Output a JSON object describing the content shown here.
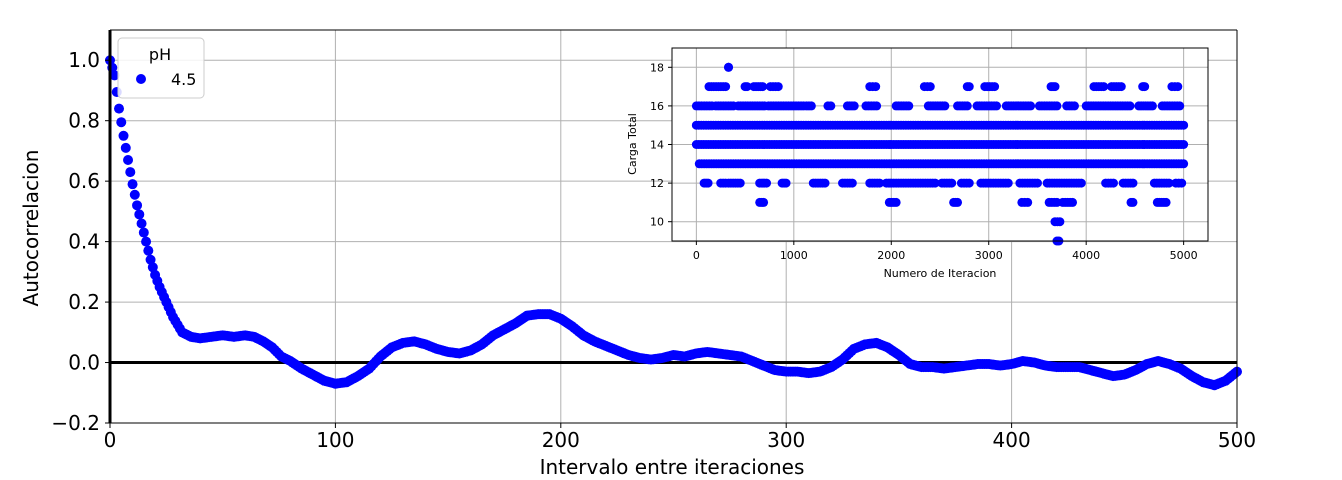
{
  "chart_data": [
    {
      "type": "scatter",
      "xlabel": "Intervalo entre iteraciones",
      "ylabel": "Autocorrelacion",
      "xlim": [
        0,
        500
      ],
      "ylim": [
        -0.2,
        1.1
      ],
      "xticks": [
        0,
        100,
        200,
        300,
        400,
        500
      ],
      "xtick_labels": [
        "0",
        "100",
        "200",
        "300",
        "400",
        "500"
      ],
      "yticks": [
        -0.2,
        0.0,
        0.2,
        0.4,
        0.6,
        0.8,
        1.0
      ],
      "ytick_labels": [
        "−0.2",
        "0.0",
        "0.2",
        "0.4",
        "0.6",
        "0.8",
        "1.0"
      ],
      "grid": true,
      "reference_line": {
        "y": 0.0,
        "color": "#000000"
      },
      "legend": {
        "title": "pH",
        "position": "top-left"
      },
      "series": [
        {
          "name": "4.5",
          "color": "#0000ff",
          "x_step": 1,
          "x_start": 0,
          "keypoints": [
            [
              0,
              1.0
            ],
            [
              2,
              0.95
            ],
            [
              4,
              0.84
            ],
            [
              6,
              0.75
            ],
            [
              8,
              0.67
            ],
            [
              10,
              0.59
            ],
            [
              12,
              0.52
            ],
            [
              14,
              0.46
            ],
            [
              16,
              0.4
            ],
            [
              18,
              0.34
            ],
            [
              20,
              0.29
            ],
            [
              22,
              0.25
            ],
            [
              25,
              0.2
            ],
            [
              28,
              0.15
            ],
            [
              32,
              0.1
            ],
            [
              36,
              0.085
            ],
            [
              40,
              0.08
            ],
            [
              45,
              0.085
            ],
            [
              50,
              0.09
            ],
            [
              55,
              0.085
            ],
            [
              60,
              0.09
            ],
            [
              64,
              0.085
            ],
            [
              68,
              0.07
            ],
            [
              72,
              0.05
            ],
            [
              76,
              0.02
            ],
            [
              80,
              0.005
            ],
            [
              85,
              -0.02
            ],
            [
              90,
              -0.04
            ],
            [
              95,
              -0.06
            ],
            [
              100,
              -0.07
            ],
            [
              105,
              -0.065
            ],
            [
              110,
              -0.045
            ],
            [
              115,
              -0.02
            ],
            [
              120,
              0.02
            ],
            [
              125,
              0.05
            ],
            [
              130,
              0.065
            ],
            [
              135,
              0.07
            ],
            [
              140,
              0.06
            ],
            [
              145,
              0.045
            ],
            [
              150,
              0.035
            ],
            [
              155,
              0.03
            ],
            [
              160,
              0.04
            ],
            [
              165,
              0.06
            ],
            [
              170,
              0.09
            ],
            [
              175,
              0.11
            ],
            [
              180,
              0.13
            ],
            [
              185,
              0.155
            ],
            [
              190,
              0.16
            ],
            [
              195,
              0.16
            ],
            [
              200,
              0.145
            ],
            [
              205,
              0.12
            ],
            [
              210,
              0.09
            ],
            [
              215,
              0.07
            ],
            [
              220,
              0.055
            ],
            [
              225,
              0.04
            ],
            [
              230,
              0.025
            ],
            [
              235,
              0.015
            ],
            [
              240,
              0.01
            ],
            [
              245,
              0.015
            ],
            [
              250,
              0.025
            ],
            [
              255,
              0.02
            ],
            [
              260,
              0.03
            ],
            [
              265,
              0.035
            ],
            [
              270,
              0.03
            ],
            [
              275,
              0.025
            ],
            [
              280,
              0.02
            ],
            [
              285,
              0.005
            ],
            [
              290,
              -0.01
            ],
            [
              295,
              -0.025
            ],
            [
              300,
              -0.03
            ],
            [
              305,
              -0.03
            ],
            [
              310,
              -0.035
            ],
            [
              315,
              -0.03
            ],
            [
              320,
              -0.015
            ],
            [
              325,
              0.01
            ],
            [
              330,
              0.045
            ],
            [
              335,
              0.06
            ],
            [
              340,
              0.065
            ],
            [
              345,
              0.05
            ],
            [
              350,
              0.025
            ],
            [
              355,
              -0.005
            ],
            [
              360,
              -0.015
            ],
            [
              365,
              -0.015
            ],
            [
              370,
              -0.02
            ],
            [
              375,
              -0.015
            ],
            [
              380,
              -0.01
            ],
            [
              385,
              -0.005
            ],
            [
              390,
              -0.005
            ],
            [
              395,
              -0.01
            ],
            [
              400,
              -0.005
            ],
            [
              405,
              0.005
            ],
            [
              410,
              0.0
            ],
            [
              415,
              -0.01
            ],
            [
              420,
              -0.015
            ],
            [
              425,
              -0.015
            ],
            [
              430,
              -0.015
            ],
            [
              435,
              -0.025
            ],
            [
              440,
              -0.035
            ],
            [
              445,
              -0.045
            ],
            [
              450,
              -0.04
            ],
            [
              455,
              -0.025
            ],
            [
              460,
              -0.005
            ],
            [
              465,
              0.005
            ],
            [
              470,
              -0.005
            ],
            [
              475,
              -0.02
            ],
            [
              480,
              -0.045
            ],
            [
              485,
              -0.065
            ],
            [
              490,
              -0.075
            ],
            [
              495,
              -0.06
            ],
            [
              500,
              -0.03
            ]
          ]
        }
      ]
    },
    {
      "type": "scatter",
      "xlabel": "Numero de Iteracion",
      "ylabel": "Carga Total",
      "xlim": [
        -250,
        5250
      ],
      "ylim": [
        9,
        19
      ],
      "xticks": [
        0,
        1000,
        2000,
        3000,
        4000,
        5000
      ],
      "xtick_labels": [
        "0",
        "1000",
        "2000",
        "3000",
        "4000",
        "5000"
      ],
      "yticks": [
        10,
        12,
        14,
        16,
        18
      ],
      "ytick_labels": [
        "10",
        "12",
        "14",
        "16",
        "18"
      ],
      "grid": true,
      "series": [
        {
          "name": "",
          "color": "#0000ff",
          "levels": [
            {
              "y": 15,
              "ranges": [
                [
                  0,
                  5000
                ]
              ]
            },
            {
              "y": 14,
              "ranges": [
                [
                  0,
                  5000
                ]
              ]
            },
            {
              "y": 13,
              "ranges": [
                [
                  30,
                  5000
                ]
              ]
            },
            {
              "y": 16,
              "ranges": [
                [
                  0,
                  160
                ],
                [
                  200,
                  380
                ],
                [
                  430,
                  700
                ],
                [
                  740,
                  1100
                ],
                [
                  1130,
                  1180
                ],
                [
                  1350,
                  1380
                ],
                [
                  1550,
                  1620
                ],
                [
                  1740,
                  1850
                ],
                [
                  2050,
                  2180
                ],
                [
                  2380,
                  2550
                ],
                [
                  2680,
                  2780
                ],
                [
                  2880,
                  3080
                ],
                [
                  3180,
                  3430
                ],
                [
                  3520,
                  3700
                ],
                [
                  3800,
                  3880
                ],
                [
                  4000,
                  4450
                ],
                [
                  4540,
                  4680
                ],
                [
                  4780,
                  4960
                ]
              ]
            },
            {
              "y": 12,
              "ranges": [
                [
                  80,
                  120
                ],
                [
                  250,
                  300
                ],
                [
                  330,
                  450
                ],
                [
                  650,
                  720
                ],
                [
                  880,
                  920
                ],
                [
                  1200,
                  1320
                ],
                [
                  1500,
                  1600
                ],
                [
                  1780,
                  1880
                ],
                [
                  1950,
                  2450
                ],
                [
                  2520,
                  2620
                ],
                [
                  2720,
                  2800
                ],
                [
                  2920,
                  3200
                ],
                [
                  3320,
                  3500
                ],
                [
                  3600,
                  3950
                ],
                [
                  4200,
                  4280
                ],
                [
                  4380,
                  4480
                ],
                [
                  4700,
                  4850
                ],
                [
                  4920,
                  4980
                ]
              ]
            },
            {
              "y": 17,
              "ranges": [
                [
                  130,
                  300
                ],
                [
                  500,
                  520
                ],
                [
                  590,
                  680
                ],
                [
                  760,
                  840
                ],
                [
                  1780,
                  1840
                ],
                [
                  2340,
                  2400
                ],
                [
                  2780,
                  2800
                ],
                [
                  2960,
                  3060
                ],
                [
                  3640,
                  3680
                ],
                [
                  4080,
                  4180
                ],
                [
                  4260,
                  4360
                ],
                [
                  4580,
                  4600
                ],
                [
                  4880,
                  4940
                ]
              ]
            },
            {
              "y": 11,
              "ranges": [
                [
                  650,
                  690
                ],
                [
                  1980,
                  2050
                ],
                [
                  2640,
                  2680
                ],
                [
                  3340,
                  3400
                ],
                [
                  3620,
                  3700
                ],
                [
                  3760,
                  3860
                ],
                [
                  4460,
                  4480
                ],
                [
                  4730,
                  4820
                ]
              ]
            },
            {
              "y": 18,
              "ranges": [
                [
                  330,
                  330
                ]
              ]
            },
            {
              "y": 10,
              "ranges": [
                [
                  3680,
                  3730
                ]
              ]
            },
            {
              "y": 9,
              "ranges": [
                [
                  3700,
                  3720
                ]
              ]
            }
          ]
        }
      ]
    }
  ]
}
